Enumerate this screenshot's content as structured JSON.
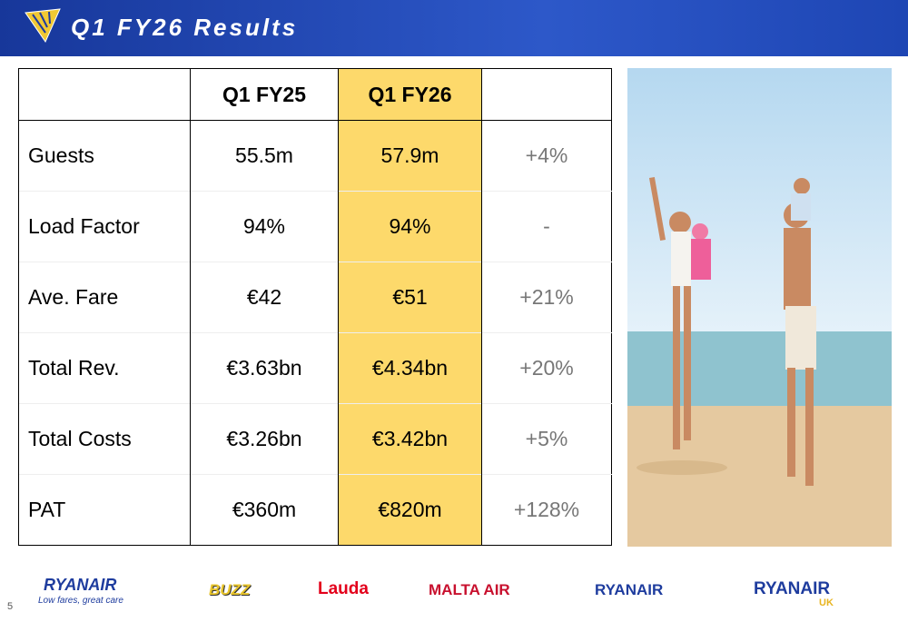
{
  "header": {
    "title": "Q1 FY26 Results"
  },
  "table": {
    "header": [
      "Q1 FY25",
      "Q1 FY26"
    ],
    "rows": [
      [
        "Guests",
        "55.5m",
        "57.9m",
        "+4%"
      ],
      [
        "Load Factor",
        "94%",
        "94%",
        "-"
      ],
      [
        "Ave. Fare",
        "€42",
        "€51",
        "+21%"
      ],
      [
        "Total Rev.",
        "€3.63bn",
        "€4.34bn",
        "+20%"
      ],
      [
        "Total Costs",
        "€3.26bn",
        "€3.42bn",
        "+5%"
      ],
      [
        "PAT",
        "€360m",
        "€820m",
        "+128%"
      ]
    ]
  },
  "footer": {
    "logos": [
      "RYANAIR",
      "Low fares, great care",
      "BUZZ",
      "Lauda",
      "MALTA AIR",
      "RYANAIR",
      "RYANAIR",
      "UK"
    ],
    "page_number": "5"
  }
}
